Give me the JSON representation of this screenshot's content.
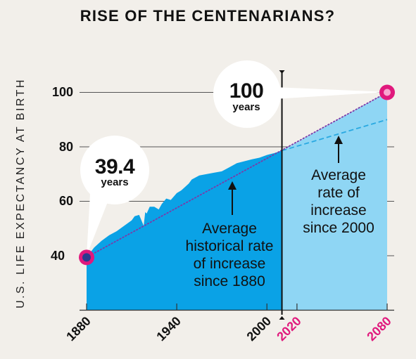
{
  "chart_data": {
    "type": "area",
    "title": "RISE OF THE CENTENARIANS?",
    "ylabel": "U.S. LIFE EXPECTANCY AT BIRTH",
    "xlim": [
      1880,
      2080
    ],
    "ylim": [
      20,
      100
    ],
    "yticks": [
      "40",
      "60",
      "80",
      "100"
    ],
    "xticks": [
      {
        "label": "1880",
        "value": 1880,
        "color": "#111111"
      },
      {
        "label": "1940",
        "value": 1940,
        "color": "#111111"
      },
      {
        "label": "2000",
        "value": 2000,
        "color": "#111111"
      },
      {
        "label": "2020",
        "value": 2020,
        "color": "#e0197d"
      },
      {
        "label": "2080",
        "value": 2080,
        "color": "#e0197d"
      }
    ],
    "divider_year": 2010,
    "series": [
      {
        "color": "#0aa2e6",
        "x": [
          1880,
          1885,
          1890,
          1895,
          1900,
          1905,
          1910,
          1912,
          1915,
          1918,
          1919,
          1920,
          1922,
          1925,
          1928,
          1930,
          1933,
          1936,
          1940,
          1943,
          1945,
          1948,
          1950,
          1955,
          1960,
          1965,
          1970,
          1975,
          1980,
          1985,
          1990,
          1995,
          2000,
          2005,
          2010
        ],
        "y": [
          39.4,
          43,
          45.5,
          47.5,
          49,
          51,
          53,
          54.5,
          55,
          51,
          56,
          55.5,
          58,
          58,
          57,
          59,
          61,
          60.5,
          63,
          64,
          65,
          66.5,
          68,
          69.5,
          70,
          70.5,
          71,
          72.5,
          74,
          74.7,
          75.4,
          76,
          77,
          77.7,
          78.6
        ]
      },
      {
        "color": "#8fd6f4",
        "x": [
          2010,
          2080
        ],
        "y": [
          78.6,
          100
        ]
      }
    ],
    "trend_lines": [
      {
        "label": "Average historical rate of increase since 1880",
        "style": "dotted",
        "color": "#7b3aa8",
        "x": [
          1880,
          2080
        ],
        "y": [
          39.4,
          100
        ]
      },
      {
        "label": "Average rate of increase since 2000",
        "style": "dashed",
        "color": "#29a9e1",
        "x": [
          2010,
          2080
        ],
        "y": [
          78.6,
          90
        ]
      }
    ],
    "points": [
      {
        "x": 1880,
        "y": 39.4,
        "value": "39.4",
        "unit": "years"
      },
      {
        "x": 2080,
        "y": 100,
        "value": "100",
        "unit": "years"
      }
    ],
    "annotations": {
      "historical": [
        "Average",
        "historical rate",
        "of increase",
        "since 1880"
      ],
      "recent": [
        "Average",
        "rate of",
        "increase",
        "since 2000"
      ]
    },
    "colors": {
      "background": "#f2efea",
      "highlight": "#e0197d",
      "start_point": "#2b3a8f"
    },
    "grid": true
  }
}
